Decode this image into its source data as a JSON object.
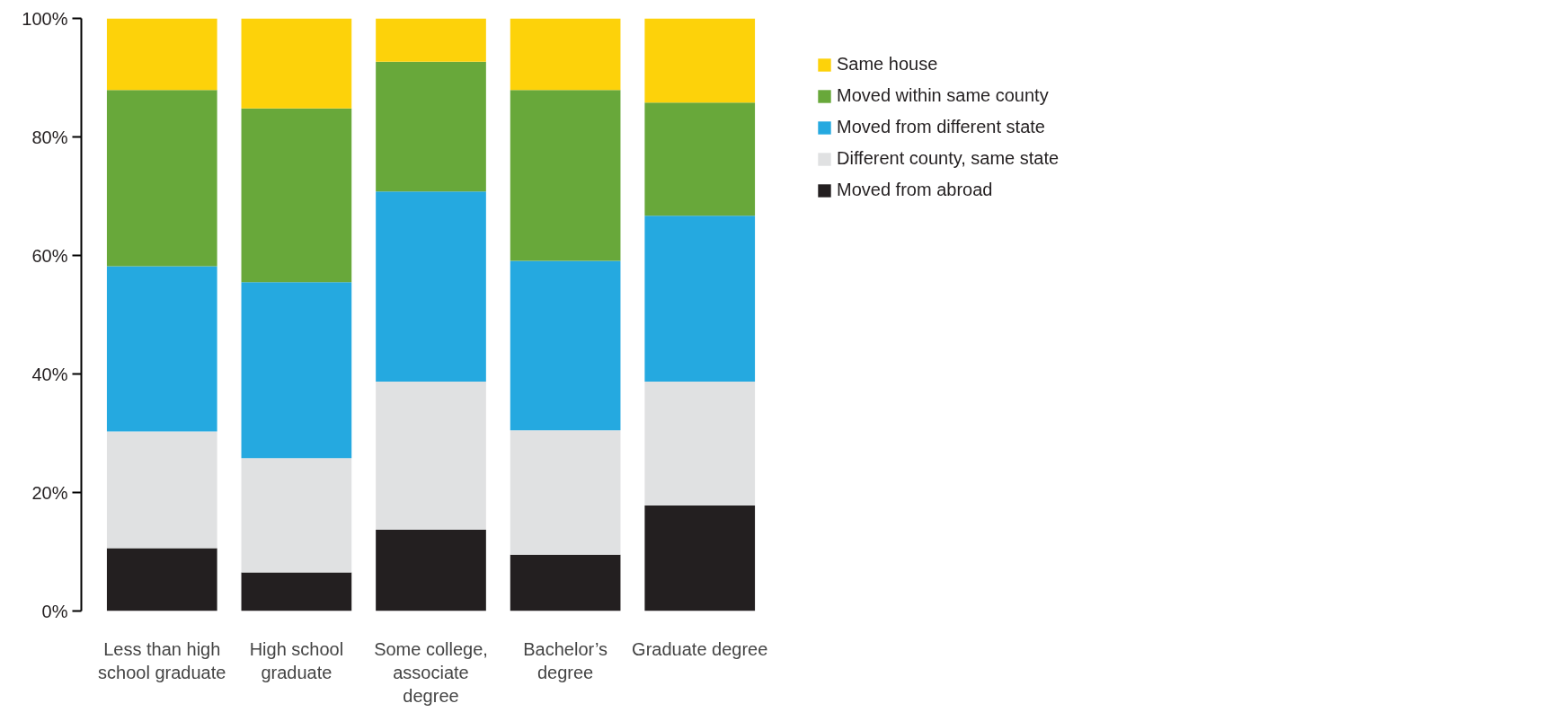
{
  "chart_data": {
    "type": "bar",
    "stacked": true,
    "categories": [
      "Less than high school graduate",
      "High school graduate",
      "Some college, associate degree",
      "Bachelor’s degree",
      "Graduate degree"
    ],
    "series": [
      {
        "name": "Moved from abroad",
        "color": "#231f20",
        "values": [
          10.6,
          6.5,
          13.7,
          9.5,
          17.8
        ]
      },
      {
        "name": "Different county, same state",
        "color": "#e0e1e2",
        "values": [
          19.7,
          19.3,
          25.0,
          21.0,
          20.9
        ]
      },
      {
        "name": "Moved from different state",
        "color": "#25a9e0",
        "values": [
          27.9,
          29.7,
          32.1,
          28.6,
          28.0
        ]
      },
      {
        "name": "Moved within same county",
        "color": "#68a83a",
        "values": [
          29.7,
          29.3,
          21.9,
          28.8,
          19.1
        ]
      },
      {
        "name": "Same house",
        "color": "#fdd20a",
        "values": [
          12.1,
          15.2,
          7.3,
          12.1,
          14.2
        ]
      }
    ],
    "ylim": [
      0,
      100
    ],
    "yticks": [
      {
        "value": 0,
        "label": "0%"
      },
      {
        "value": 20,
        "label": "20%"
      },
      {
        "value": 40,
        "label": "40%"
      },
      {
        "value": 60,
        "label": "60%"
      },
      {
        "value": 80,
        "label": "80%"
      },
      {
        "value": 100,
        "label": "100%"
      }
    ],
    "grid": false,
    "legend": "right"
  }
}
